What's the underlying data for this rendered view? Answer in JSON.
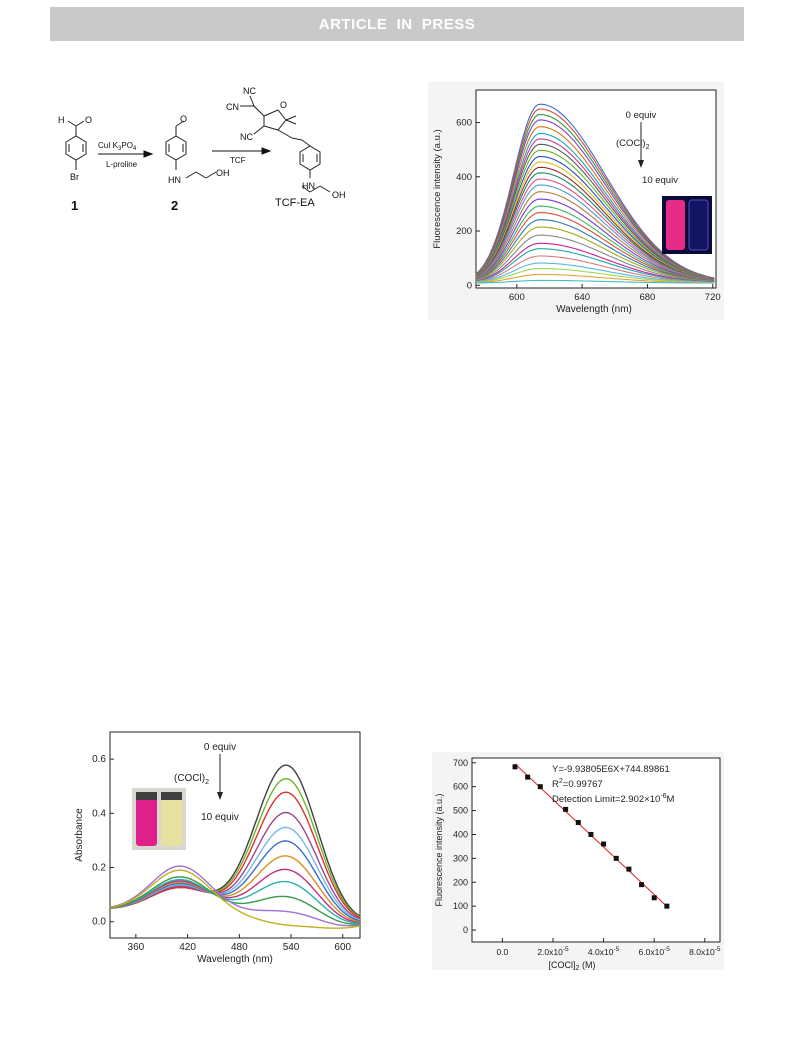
{
  "header": {
    "running_title": "ARTICLE  IN  PRESS"
  },
  "scheme": {
    "reagents_step1": "CuI  K",
    "reagents_step1_sub": "3",
    "reagents_step1_tail": "PO",
    "reagents_step1_sub2": "4",
    "reagents_step1_b": "L-proline",
    "reagents_step2": "TCF",
    "compound1": "1",
    "compound2": "2",
    "product": "TCF-EA",
    "atom_H": "H",
    "atom_O": "O",
    "atom_Br": "Br",
    "atom_HN": "HN",
    "atom_OH": "OH",
    "atom_NC": "NC",
    "atom_CN": "CN"
  },
  "colors": {
    "red_line": "#e02020",
    "vial_pink": "#e0208a",
    "vial_yellow": "#e8e0a0",
    "vial_fluor": "#ff3090",
    "vial_dark": "#141464"
  },
  "chart_data": [
    {
      "id": "fluorescence_spectra",
      "type": "line",
      "xlabel": "Wavelength (nm)",
      "ylabel": "Fluorescence intensity (a.u.)",
      "xlim": [
        575,
        722
      ],
      "ylim": [
        -10,
        720
      ],
      "xticks": [
        "600",
        "640",
        "680",
        "720"
      ],
      "xtick_values": [
        600,
        640,
        680,
        720
      ],
      "yticks": [
        "0",
        "200",
        "400",
        "600"
      ],
      "ytick_values": [
        0,
        200,
        400,
        600
      ],
      "peak_x": 614,
      "annotations": {
        "start": "0 equiv",
        "reagent": "(COCl)",
        "reagent_sub": "2",
        "end": "10 equiv"
      },
      "inset": "photo of two vials under UV light: red-fluorescent vial and dark blue vial",
      "series_peaks": [
        668,
        650,
        630,
        610,
        585,
        560,
        540,
        520,
        498,
        475,
        455,
        435,
        415,
        392,
        370,
        345,
        318,
        292,
        268,
        242,
        215,
        185,
        155,
        135,
        108,
        82,
        62,
        40,
        18
      ],
      "series_colors": [
        "#3a6fcf",
        "#d94a3a",
        "#2a9a3a",
        "#8a3ac8",
        "#d07a1a",
        "#1aa8b8",
        "#c83a8a",
        "#5a5a5a",
        "#6ab820",
        "#2a4ad8",
        "#d8c020",
        "#9a2a2a",
        "#1a8a6a",
        "#e0508a",
        "#4a9ad8",
        "#b87a3a",
        "#7a3ad8",
        "#3ab85a",
        "#d8503a",
        "#2a7ab8",
        "#a8a820",
        "#8a8a8a",
        "#c8209a",
        "#20a8a8",
        "#d87a7a",
        "#5ab8e8",
        "#9ad850",
        "#e8a040",
        "#40c0c0"
      ]
    },
    {
      "id": "absorption_spectra",
      "type": "line",
      "xlabel": "Wavelength (nm)",
      "ylabel": "Absorbance",
      "xlim": [
        330,
        620
      ],
      "ylim": [
        -0.06,
        0.7
      ],
      "xticks": [
        "360",
        "420",
        "480",
        "540",
        "600"
      ],
      "xtick_values": [
        360,
        420,
        480,
        540,
        600
      ],
      "yticks": [
        "0.0",
        "0.2",
        "0.4",
        "0.6"
      ],
      "ytick_values": [
        0.0,
        0.2,
        0.4,
        0.6
      ],
      "annotations": {
        "start": "0 equiv",
        "reagent": "(COCl)",
        "reagent_sub": "2",
        "end": "10 equiv"
      },
      "inset": "photo of two vials: pink vial and pale yellow vial",
      "series": [
        {
          "color": "#404040",
          "band1": 0.12,
          "band2": 0.56
        },
        {
          "color": "#6ab82a",
          "band1": 0.12,
          "band2": 0.51
        },
        {
          "color": "#e03030",
          "band1": 0.12,
          "band2": 0.46
        },
        {
          "color": "#9a4a8a",
          "band1": 0.125,
          "band2": 0.385
        },
        {
          "color": "#7ab8e8",
          "band1": 0.13,
          "band2": 0.33
        },
        {
          "color": "#3a6fd0",
          "band1": 0.135,
          "band2": 0.28
        },
        {
          "color": "#d89020",
          "band1": 0.14,
          "band2": 0.225
        },
        {
          "color": "#c03080",
          "band1": 0.145,
          "band2": 0.175
        },
        {
          "color": "#2ab0b0",
          "band1": 0.15,
          "band2": 0.13
        },
        {
          "color": "#3a9a4a",
          "band1": 0.16,
          "band2": 0.075
        },
        {
          "color": "#a070d8",
          "band1": 0.2,
          "band2": 0.02
        },
        {
          "color": "#c0b020",
          "band1": 0.185,
          "band2": -0.03
        }
      ]
    },
    {
      "id": "linear_fit",
      "type": "scatter",
      "xlabel": "[COCl]",
      "xlabel_sub": "2",
      "xlabel_tail": " (M)",
      "ylabel": "Fluorescence intensity (a.u.)",
      "xlim": [
        -1.2e-05,
        8.6e-05
      ],
      "ylim": [
        -50,
        720
      ],
      "xticks": [
        {
          "value": 0.0,
          "base": "0.0",
          "exp": ""
        },
        {
          "value": 2e-05,
          "base": "2.0x10",
          "exp": "-5"
        },
        {
          "value": 4e-05,
          "base": "4.0x10",
          "exp": "-5"
        },
        {
          "value": 6e-05,
          "base": "6.0x10",
          "exp": "-5"
        },
        {
          "value": 8e-05,
          "base": "8.0x10",
          "exp": "-5"
        }
      ],
      "yticks": [
        "0",
        "100",
        "200",
        "300",
        "400",
        "500",
        "600",
        "700"
      ],
      "ytick_values": [
        0,
        100,
        200,
        300,
        400,
        500,
        600,
        700
      ],
      "equation": "Y=-9.93805E6X+744.89861",
      "r2_label": "R",
      "r2_sup": "2",
      "r2_value": "=0.99767",
      "detection_limit": "Detection Limit=2.902×10",
      "detection_limit_exp": "-6",
      "detection_limit_unit": "M",
      "slope": -9938050,
      "intercept": 744.89861,
      "fit_x_range": [
        5e-06,
        6.5e-05
      ],
      "points": [
        [
          5e-06,
          683
        ],
        [
          1e-05,
          640
        ],
        [
          1.5e-05,
          600
        ],
        [
          2.5e-05,
          505
        ],
        [
          3e-05,
          450
        ],
        [
          3.5e-05,
          400
        ],
        [
          4e-05,
          360
        ],
        [
          4.5e-05,
          300
        ],
        [
          5e-05,
          255
        ],
        [
          5.5e-05,
          190
        ],
        [
          6e-05,
          135
        ],
        [
          6.5e-05,
          100
        ]
      ]
    }
  ]
}
